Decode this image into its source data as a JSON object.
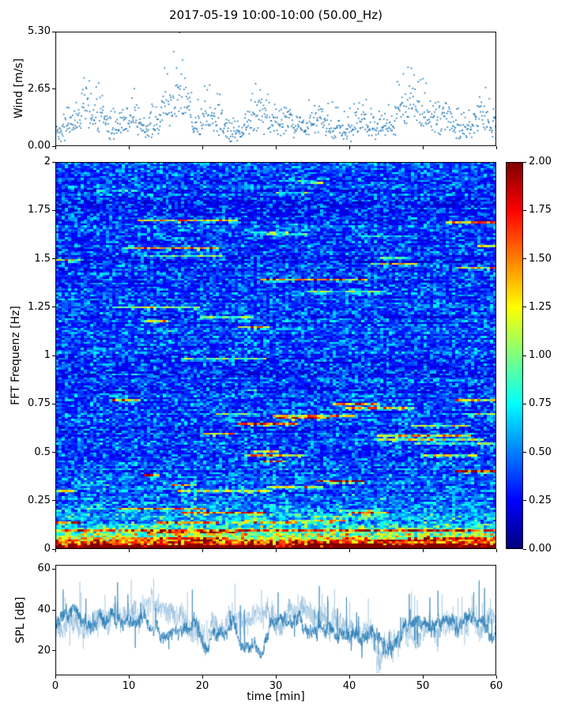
{
  "title": "2017-05-19 10:00-10:00 (50.00_Hz)",
  "xlabel": "time [min]",
  "accent_color": "#1f77b4",
  "chart_data": [
    {
      "type": "scatter",
      "name": "wind",
      "ylabel": "Wind [m/s]",
      "ylim": [
        0,
        5.3
      ],
      "xlim": [
        0,
        60
      ],
      "yticks": [
        {
          "v": 0,
          "label": "0.00"
        },
        {
          "v": 2.65,
          "label": "2.65"
        },
        {
          "v": 5.3,
          "label": "5.30"
        }
      ],
      "marker_color": "#1f77b4",
      "gen": {
        "seed": 42,
        "n": 950,
        "baseline": 0.85,
        "bumps": [
          {
            "x": 4.5,
            "h": 1.3,
            "w": 1.6
          },
          {
            "x": 10,
            "h": 0.6,
            "w": 1.2
          },
          {
            "x": 15.5,
            "h": 1.7,
            "w": 1.1
          },
          {
            "x": 17.5,
            "h": 1.9,
            "w": 0.7
          },
          {
            "x": 21,
            "h": 1.0,
            "w": 1.0
          },
          {
            "x": 27.5,
            "h": 1.2,
            "w": 0.9
          },
          {
            "x": 31,
            "h": 0.7,
            "w": 1.2
          },
          {
            "x": 36,
            "h": 0.6,
            "w": 1.5
          },
          {
            "x": 42,
            "h": 0.7,
            "w": 1.0
          },
          {
            "x": 48.5,
            "h": 1.8,
            "w": 1.7
          },
          {
            "x": 53,
            "h": 0.8,
            "w": 1.0
          },
          {
            "x": 58,
            "h": 0.9,
            "w": 0.9
          }
        ],
        "max_point": {
          "x": 16.9,
          "y": 5.3
        }
      }
    },
    {
      "type": "heatmap",
      "name": "spectrogram",
      "ylabel": "FFT Frequenz [Hz]",
      "ylim": [
        0,
        2
      ],
      "xlim": [
        0,
        60
      ],
      "colormap": "jet",
      "yticks": [
        {
          "v": 0,
          "label": "0"
        },
        {
          "v": 0.25,
          "label": "0.25"
        },
        {
          "v": 0.5,
          "label": "0.5"
        },
        {
          "v": 0.75,
          "label": "0.75"
        },
        {
          "v": 1,
          "label": "1"
        },
        {
          "v": 1.25,
          "label": "1.25"
        },
        {
          "v": 1.5,
          "label": "1.5"
        },
        {
          "v": 1.75,
          "label": "1.75"
        },
        {
          "v": 2,
          "label": "2"
        }
      ],
      "colorbar": {
        "lim": [
          0,
          2
        ],
        "ticks": [
          {
            "v": 0,
            "label": "0.00"
          },
          {
            "v": 0.25,
            "label": "0.25"
          },
          {
            "v": 0.5,
            "label": "0.50"
          },
          {
            "v": 0.75,
            "label": "0.75"
          },
          {
            "v": 1,
            "label": "1.00"
          },
          {
            "v": 1.25,
            "label": "1.25"
          },
          {
            "v": 1.5,
            "label": "1.50"
          },
          {
            "v": 1.75,
            "label": "1.75"
          },
          {
            "v": 2,
            "label": "2.00"
          }
        ]
      },
      "gen": {
        "seed": 12345,
        "cols": 140,
        "rows": 196,
        "random_streaks": 60,
        "streaks": [
          {
            "f": 0.09,
            "x0": 0,
            "x1": 60,
            "amp": 0.8
          },
          {
            "f": 0.13,
            "x0": 0,
            "x1": 3,
            "amp": 1.2
          },
          {
            "f": 0.13,
            "x0": 14,
            "x1": 22,
            "amp": 1.0
          },
          {
            "f": 0.3,
            "x0": 0,
            "x1": 2,
            "amp": 1.0
          },
          {
            "f": 0.33,
            "x0": 16,
            "x1": 19,
            "amp": 1.2
          },
          {
            "f": 0.35,
            "x0": 36,
            "x1": 42,
            "amp": 1.5
          },
          {
            "f": 0.4,
            "x0": 55,
            "x1": 60,
            "amp": 1.6
          },
          {
            "f": 0.38,
            "x0": 12,
            "x1": 14,
            "amp": 1.3
          },
          {
            "f": 0.45,
            "x0": 28,
            "x1": 31,
            "amp": 1.0
          },
          {
            "f": 0.5,
            "x0": 27,
            "x1": 30,
            "amp": 0.8
          },
          {
            "f": 0.65,
            "x0": 25,
            "x1": 33,
            "amp": 1.3
          },
          {
            "f": 0.68,
            "x0": 30,
            "x1": 37,
            "amp": 1.5
          },
          {
            "f": 0.75,
            "x0": 38,
            "x1": 44,
            "amp": 1.0
          },
          {
            "f": 0.77,
            "x0": 55,
            "x1": 60,
            "amp": 0.9
          },
          {
            "f": 1.15,
            "x0": 25,
            "x1": 29,
            "amp": 0.9
          },
          {
            "f": 1.18,
            "x0": 12,
            "x1": 15,
            "amp": 0.8
          },
          {
            "f": 1.5,
            "x0": 0,
            "x1": 3,
            "amp": 0.8
          },
          {
            "f": 1.48,
            "x0": 43,
            "x1": 49,
            "amp": 0.9
          },
          {
            "f": 1.57,
            "x0": 58,
            "x1": 60,
            "amp": 0.7
          },
          {
            "f": 1.85,
            "x0": 30,
            "x1": 34,
            "amp": 0.6
          }
        ]
      }
    },
    {
      "type": "line",
      "name": "spl",
      "ylabel": "SPL [dB]",
      "ylim": [
        8,
        62
      ],
      "xlim": [
        0,
        60
      ],
      "line_color": "#1f77b4",
      "yticks": [
        {
          "v": 20,
          "label": "20"
        },
        {
          "v": 40,
          "label": "40"
        },
        {
          "v": 60,
          "label": "60"
        }
      ],
      "xticks": [
        {
          "v": 0,
          "label": "0"
        },
        {
          "v": 10,
          "label": "10"
        },
        {
          "v": 20,
          "label": "20"
        },
        {
          "v": 30,
          "label": "30"
        },
        {
          "v": 40,
          "label": "40"
        },
        {
          "v": 50,
          "label": "50"
        },
        {
          "v": 60,
          "label": "60"
        }
      ],
      "gen": {
        "seed": 7,
        "n": 1800,
        "mean": 33,
        "dip": {
          "x": 45,
          "depth": 11,
          "w": 1.6
        }
      }
    }
  ]
}
